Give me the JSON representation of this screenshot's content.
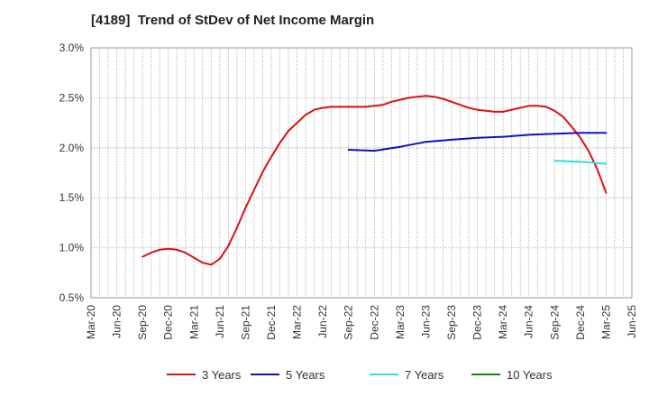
{
  "chart_data": {
    "type": "line",
    "title": "[4189]  Trend of StDev of Net Income Margin",
    "xlabel": "",
    "ylabel": "",
    "x_ticks": [
      "Mar-20",
      "Jun-20",
      "Sep-20",
      "Dec-20",
      "Mar-21",
      "Jun-21",
      "Sep-21",
      "Dec-21",
      "Mar-22",
      "Jun-22",
      "Sep-22",
      "Dec-22",
      "Mar-23",
      "Jun-23",
      "Sep-23",
      "Dec-23",
      "Mar-24",
      "Jun-24",
      "Sep-24",
      "Dec-24",
      "Mar-25",
      "Jun-25"
    ],
    "y_ticks": [
      "0.5%",
      "1.0%",
      "1.5%",
      "2.0%",
      "2.5%",
      "3.0%"
    ],
    "y_tick_values": [
      0.5,
      1.0,
      1.5,
      2.0,
      2.5,
      3.0
    ],
    "ylim": [
      0.5,
      3.0
    ],
    "grid": true,
    "legend_position": "bottom",
    "series": [
      {
        "name": "3 Years",
        "color": "#dd1111",
        "x": [
          "Sep-20",
          "Oct-20",
          "Nov-20",
          "Dec-20",
          "Jan-21",
          "Feb-21",
          "Mar-21",
          "Apr-21",
          "May-21",
          "Jun-21",
          "Jul-21",
          "Aug-21",
          "Sep-21",
          "Oct-21",
          "Nov-21",
          "Dec-21",
          "Jan-22",
          "Feb-22",
          "Mar-22",
          "Apr-22",
          "May-22",
          "Jun-22",
          "Jul-22",
          "Aug-22",
          "Sep-22",
          "Oct-22",
          "Nov-22",
          "Dec-22",
          "Jan-23",
          "Feb-23",
          "Mar-23",
          "Apr-23",
          "May-23",
          "Jun-23",
          "Jul-23",
          "Aug-23",
          "Sep-23",
          "Oct-23",
          "Nov-23",
          "Dec-23",
          "Jan-24",
          "Feb-24",
          "Mar-24",
          "Apr-24",
          "May-24",
          "Jun-24",
          "Jul-24",
          "Aug-24",
          "Sep-24",
          "Oct-24",
          "Nov-24",
          "Dec-24",
          "Jan-25",
          "Feb-25",
          "Mar-25"
        ],
        "values": [
          0.91,
          0.95,
          0.98,
          0.99,
          0.98,
          0.95,
          0.9,
          0.85,
          0.83,
          0.89,
          1.02,
          1.2,
          1.4,
          1.58,
          1.76,
          1.91,
          2.05,
          2.17,
          2.25,
          2.33,
          2.38,
          2.4,
          2.41,
          2.41,
          2.41,
          2.41,
          2.41,
          2.42,
          2.43,
          2.46,
          2.48,
          2.5,
          2.51,
          2.52,
          2.51,
          2.49,
          2.46,
          2.43,
          2.4,
          2.38,
          2.37,
          2.36,
          2.36,
          2.38,
          2.4,
          2.42,
          2.42,
          2.41,
          2.37,
          2.31,
          2.21,
          2.1,
          1.96,
          1.78,
          1.55
        ]
      },
      {
        "name": "5 Years",
        "color": "#1111bb",
        "x": [
          "Sep-22",
          "Dec-22",
          "Mar-23",
          "Jun-23",
          "Sep-23",
          "Dec-23",
          "Mar-24",
          "Jun-24",
          "Sep-24",
          "Dec-24",
          "Mar-25"
        ],
        "values": [
          1.98,
          1.97,
          2.01,
          2.06,
          2.08,
          2.1,
          2.11,
          2.13,
          2.14,
          2.15,
          2.15
        ]
      },
      {
        "name": "7 Years",
        "color": "#33dddd",
        "x": [
          "Sep-24",
          "Dec-24",
          "Mar-25"
        ],
        "values": [
          1.87,
          1.86,
          1.84
        ]
      },
      {
        "name": "10 Years",
        "color": "#118811",
        "x": [],
        "values": []
      }
    ]
  }
}
